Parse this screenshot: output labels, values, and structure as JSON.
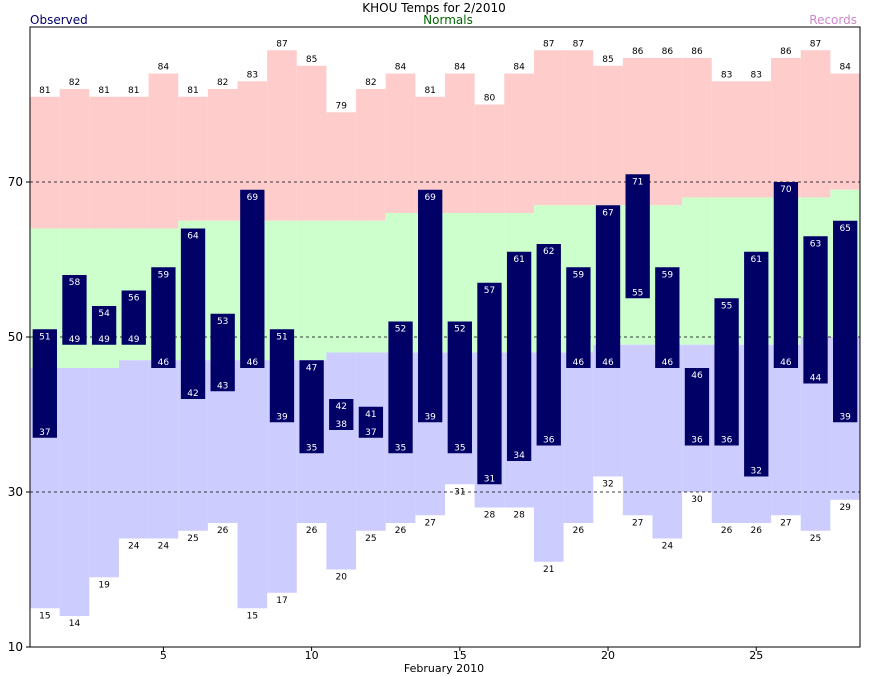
{
  "chart_data": {
    "type": "bar",
    "title": "KHOU Temps for 2/2010",
    "xlabel": "February 2010",
    "ylabel": "",
    "legend": [
      {
        "name": "Observed",
        "color": "#000066",
        "placement": "top-left"
      },
      {
        "name": "Normals",
        "color": "#006600",
        "placement": "top-center"
      },
      {
        "name": "Records",
        "color": "#cc88cc",
        "placement": "top-right"
      }
    ],
    "colors": {
      "record_high_fill": "#ffcccc",
      "normal_fill": "#ccffcc",
      "record_low_fill": "#ccccff",
      "observed_bar": "#000066",
      "gridline": "#000000"
    },
    "xlim": [
      0.5,
      28.5
    ],
    "ylim": [
      10,
      90
    ],
    "x_ticks": [
      5,
      10,
      15,
      20,
      25
    ],
    "y_ticks": [
      10,
      30,
      50,
      70
    ],
    "gridlines_dashed": [
      30,
      50,
      70
    ],
    "days": [
      1,
      2,
      3,
      4,
      5,
      6,
      7,
      8,
      9,
      10,
      11,
      12,
      13,
      14,
      15,
      16,
      17,
      18,
      19,
      20,
      21,
      22,
      23,
      24,
      25,
      26,
      27,
      28
    ],
    "record_high": [
      81,
      82,
      81,
      81,
      84,
      81,
      82,
      83,
      87,
      85,
      79,
      82,
      84,
      81,
      84,
      80,
      84,
      87,
      87,
      85,
      86,
      86,
      86,
      83,
      83,
      86,
      87,
      84
    ],
    "record_low": [
      15,
      14,
      19,
      24,
      24,
      25,
      26,
      15,
      17,
      26,
      20,
      25,
      26,
      27,
      31,
      28,
      28,
      21,
      26,
      32,
      27,
      24,
      30,
      26,
      26,
      27,
      25,
      29
    ],
    "normal_high": [
      64,
      64,
      64,
      64,
      64,
      65,
      65,
      65,
      65,
      65,
      65,
      65,
      66,
      66,
      66,
      66,
      66,
      67,
      67,
      67,
      67,
      67,
      68,
      68,
      68,
      68,
      68,
      69
    ],
    "normal_low": [
      46,
      46,
      46,
      47,
      47,
      47,
      47,
      47,
      47,
      47,
      48,
      48,
      48,
      48,
      48,
      48,
      48,
      48,
      48,
      49,
      49,
      49,
      49,
      49,
      49,
      49,
      50,
      50
    ],
    "observed_high": [
      51,
      58,
      54,
      56,
      59,
      64,
      53,
      69,
      51,
      47,
      42,
      41,
      52,
      69,
      52,
      57,
      61,
      62,
      59,
      67,
      71,
      59,
      46,
      55,
      61,
      70,
      63,
      65
    ],
    "observed_low": [
      37,
      49,
      49,
      49,
      46,
      42,
      43,
      46,
      39,
      35,
      38,
      37,
      35,
      39,
      35,
      31,
      34,
      36,
      46,
      46,
      55,
      46,
      36,
      36,
      32,
      46,
      44,
      39
    ]
  }
}
